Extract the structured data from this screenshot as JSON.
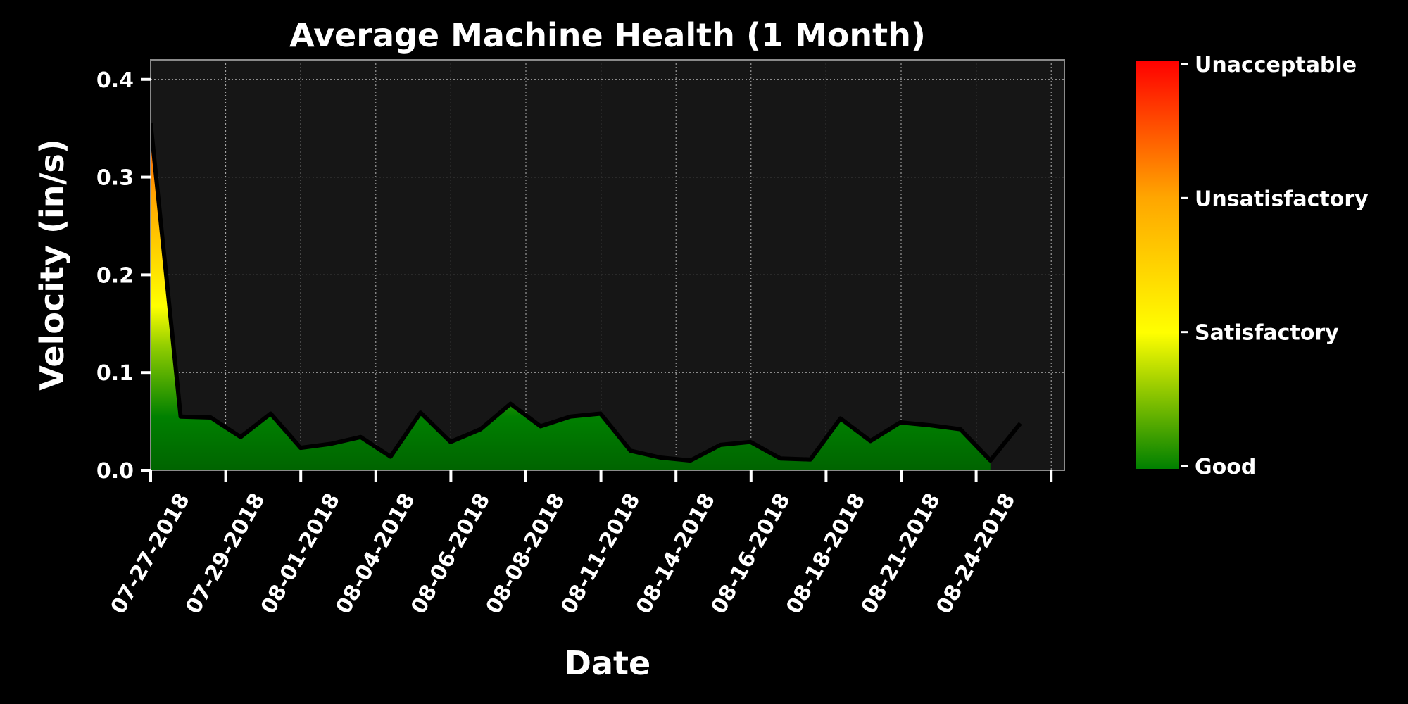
{
  "chart_data": {
    "type": "area",
    "title": "Average Machine Health (1 Month)",
    "xlabel": "Date",
    "ylabel": "Velocity (in/s)",
    "ylim": [
      0,
      0.42
    ],
    "grid": true,
    "yticks": [
      "0.0",
      "0.1",
      "0.2",
      "0.3",
      "0.4"
    ],
    "ytick_values": [
      0,
      0.1,
      0.2,
      0.3,
      0.4
    ],
    "xticks": [
      "07-27-2018",
      "07-29-2018",
      "08-01-2018",
      "08-04-2018",
      "08-06-2018",
      "08-08-2018",
      "08-11-2018",
      "08-14-2018",
      "08-16-2018",
      "08-18-2018",
      "08-21-2018",
      "08-24-2018",
      ""
    ],
    "series": [
      {
        "values": [
          0.355,
          0.055,
          0.054,
          0.034,
          0.058,
          0.023,
          0.027,
          0.034,
          0.014,
          0.059,
          0.029,
          0.042,
          0.068,
          0.045,
          0.055,
          0.058,
          0.02,
          0.013,
          0.01,
          0.026,
          0.029,
          0.012,
          0.011,
          0.053,
          0.03,
          0.049,
          0.046,
          0.042,
          0.01,
          0.048
        ]
      }
    ],
    "colorbar": {
      "labels": [
        "Good",
        "Satisfactory",
        "Unsatisfactory",
        "Unacceptable"
      ],
      "colors": [
        "#008000",
        "#ffff00",
        "#ffa500",
        "#ff0000"
      ]
    },
    "colors": {
      "background": "#000000",
      "plot_background": "#161616",
      "line": "#000000"
    }
  }
}
